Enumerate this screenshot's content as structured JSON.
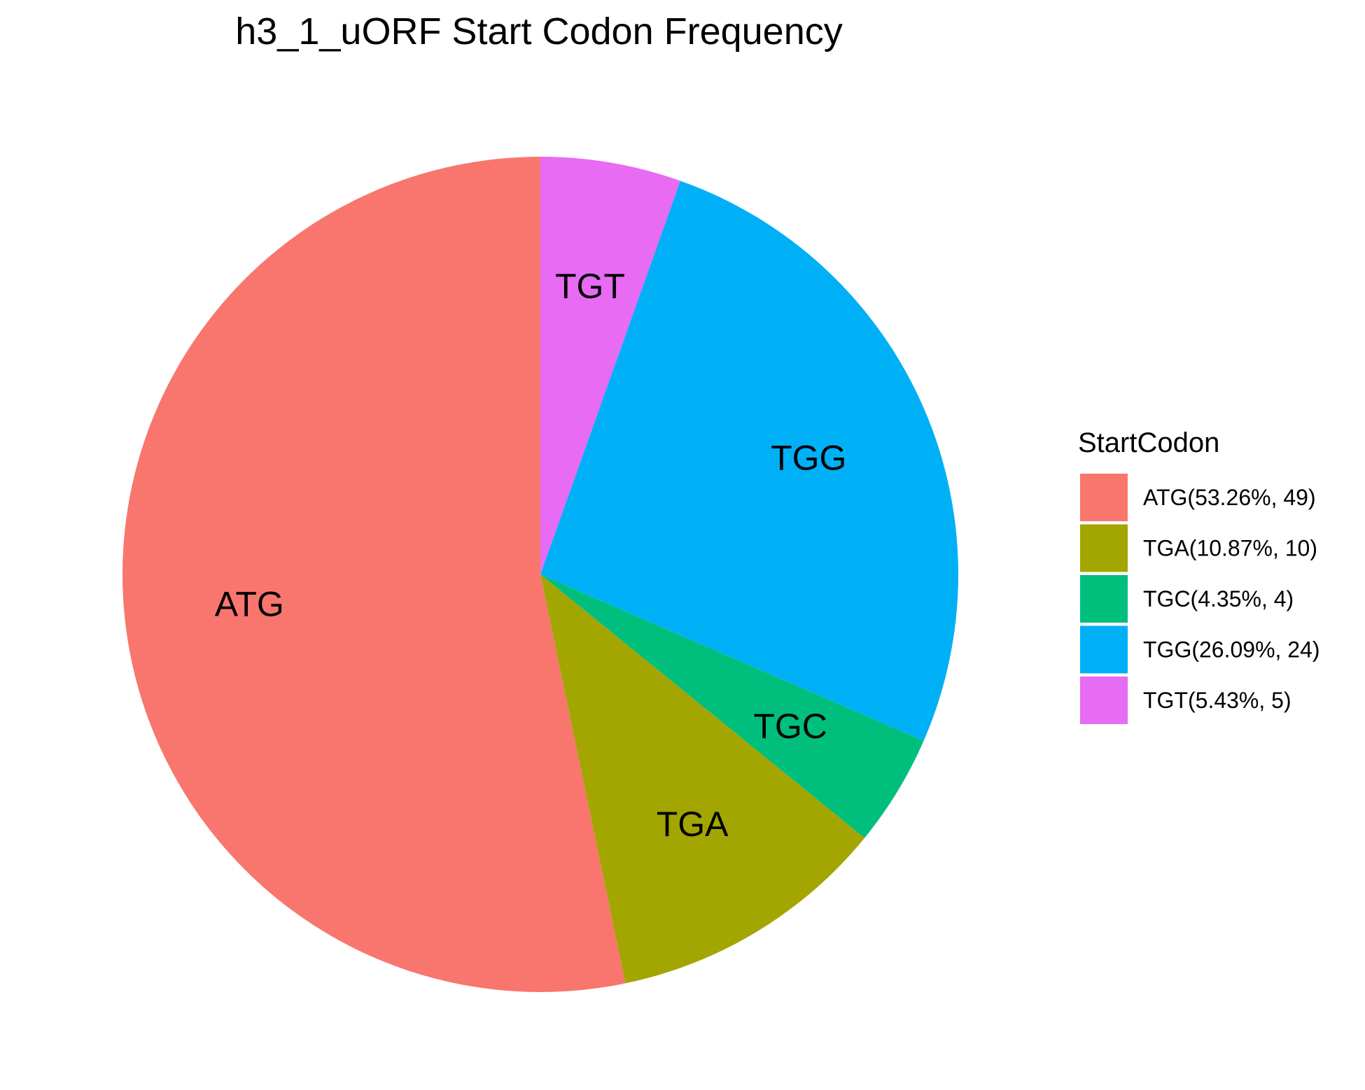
{
  "chart_data": {
    "type": "pie",
    "title": "h3_1_uORF Start Codon Frequency",
    "legend": {
      "title": "StartCodon",
      "placement": "right"
    },
    "slices": [
      {
        "label": "ATG",
        "legend_label": "ATG(53.26%, 49)",
        "count": 49,
        "percent": 53.26,
        "color": "#F8766D"
      },
      {
        "label": "TGA",
        "legend_label": "TGA(10.87%, 10)",
        "count": 10,
        "percent": 10.87,
        "color": "#A3A500"
      },
      {
        "label": "TGC",
        "legend_label": "TGC(4.35%, 4)",
        "count": 4,
        "percent": 4.35,
        "color": "#00BF7D"
      },
      {
        "label": "TGG",
        "legend_label": "TGG(26.09%, 24)",
        "count": 24,
        "percent": 26.09,
        "color": "#00B0F6"
      },
      {
        "label": "TGT",
        "legend_label": "TGT(5.43%, 5)",
        "count": 5,
        "percent": 5.43,
        "color": "#E76BF3"
      }
    ],
    "direction": "counterclockwise-from-top",
    "grid": false
  }
}
